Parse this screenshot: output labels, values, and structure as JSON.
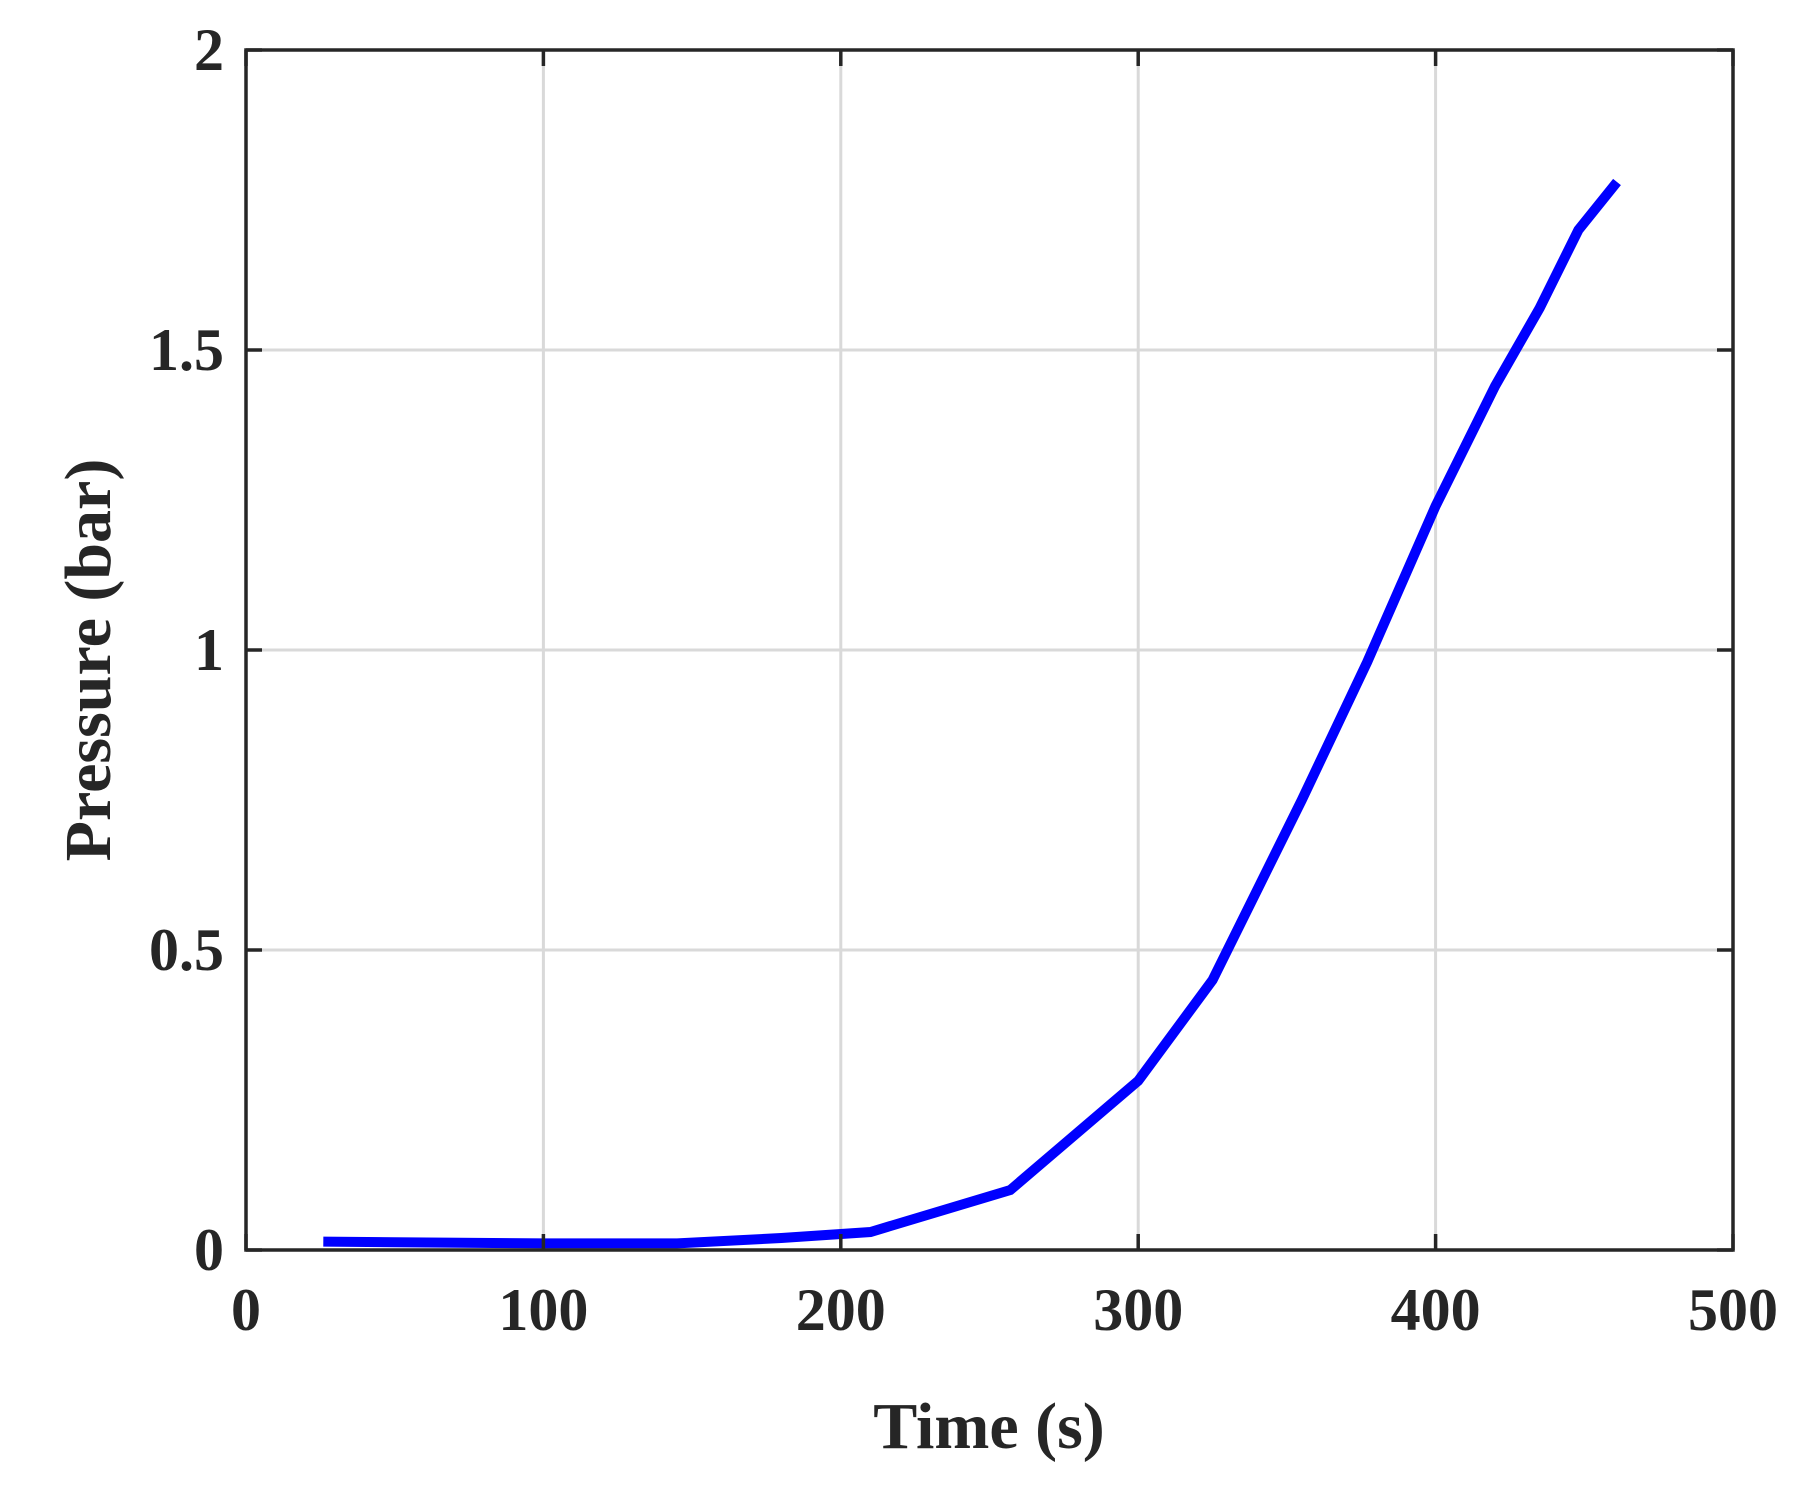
{
  "chart_data": {
    "type": "line",
    "xlabel": "Time (s)",
    "ylabel": "Pressure (bar)",
    "xlim": [
      0,
      500
    ],
    "ylim": [
      0,
      2
    ],
    "xticks": [
      0,
      100,
      200,
      300,
      400,
      500
    ],
    "xtick_labels": [
      "0",
      "100",
      "200",
      "300",
      "400",
      "500"
    ],
    "yticks": [
      0,
      0.5,
      1,
      1.5,
      2
    ],
    "ytick_labels": [
      "0",
      "0.5",
      "1",
      "1.5",
      "2"
    ],
    "grid": true,
    "series": [
      {
        "color": "#0000ff",
        "x": [
          26,
          50,
          100,
          145,
          180,
          210,
          257,
          300,
          325,
          355,
          377,
          400,
          420,
          435,
          448,
          461
        ],
        "y": [
          0.014,
          0.013,
          0.011,
          0.011,
          0.02,
          0.03,
          0.1,
          0.282,
          0.45,
          0.75,
          0.98,
          1.24,
          1.44,
          1.57,
          1.7,
          1.78
        ]
      }
    ]
  }
}
